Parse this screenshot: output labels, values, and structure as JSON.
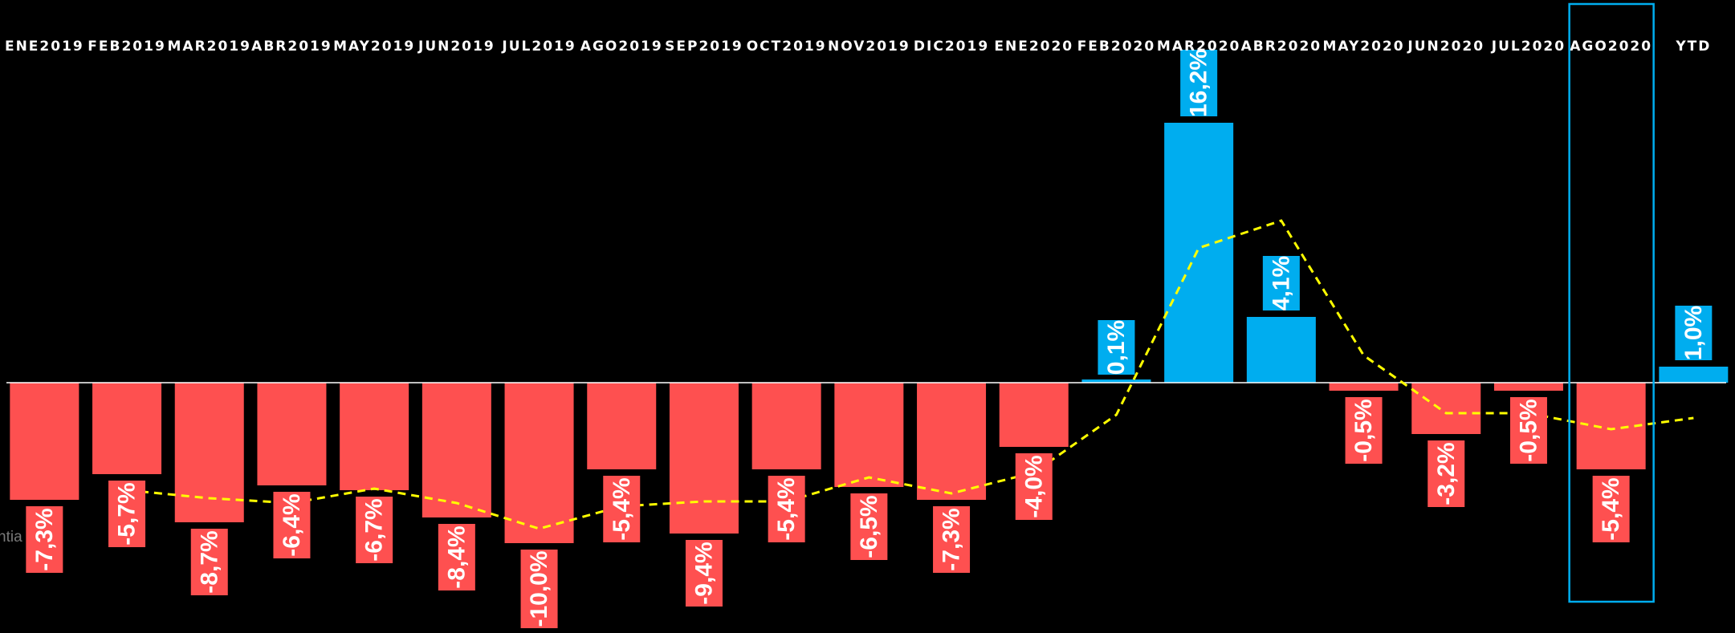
{
  "chart_data": {
    "type": "bar",
    "categories": [
      "ENE2019",
      "FEB2019",
      "MAR2019",
      "ABR2019",
      "MAY2019",
      "JUN2019",
      "JUL2019",
      "AGO2019",
      "SEP2019",
      "OCT2019",
      "NOV2019",
      "DIC2019",
      "ENE2020",
      "FEB2020",
      "MAR2020",
      "ABR2020",
      "MAY2020",
      "JUN2020",
      "JUL2020",
      "AGO2020",
      "YTD"
    ],
    "values": [
      -7.3,
      -5.7,
      -8.7,
      -6.4,
      -6.7,
      -8.4,
      -10.0,
      -5.4,
      -9.4,
      -5.4,
      -6.5,
      -7.3,
      -4.0,
      0.1,
      16.2,
      4.1,
      -0.5,
      -3.2,
      -0.5,
      -5.4,
      1.0
    ],
    "labels": [
      "-7,3%",
      "-5,7%",
      "-8,7%",
      "-6,4%",
      "-6,7%",
      "-8,4%",
      "-10,0%",
      "-5,4%",
      "-9,4%",
      "-5,4%",
      "-6,5%",
      "-7,3%",
      "-4,0%",
      "0,1%",
      "16,2%",
      "4,1%",
      "-0,5%",
      "-3,2%",
      "-0,5%",
      "-5,4%",
      "1,0%"
    ],
    "trend": [
      null,
      -6.7,
      -7.2,
      -7.5,
      -6.6,
      -7.5,
      -9.1,
      -7.7,
      -7.4,
      -7.4,
      -5.9,
      -6.9,
      -5.6,
      -2.0,
      8.4,
      10.1,
      1.7,
      -1.9,
      -1.9,
      -2.9,
      -2.2
    ],
    "highlight_category": "AGO2020",
    "ylim": [
      -15,
      20
    ],
    "colors": {
      "positive": "#00adef",
      "negative": "#fe5050",
      "trend_line": "#ffff00",
      "highlight_box": "#00adef",
      "baseline": "#ffffff",
      "background": "#000000"
    },
    "title": "",
    "xlabel": "",
    "ylabel": "",
    "legend": "none",
    "grid": false
  },
  "fragments": {
    "left_edge_text": "ntia"
  }
}
